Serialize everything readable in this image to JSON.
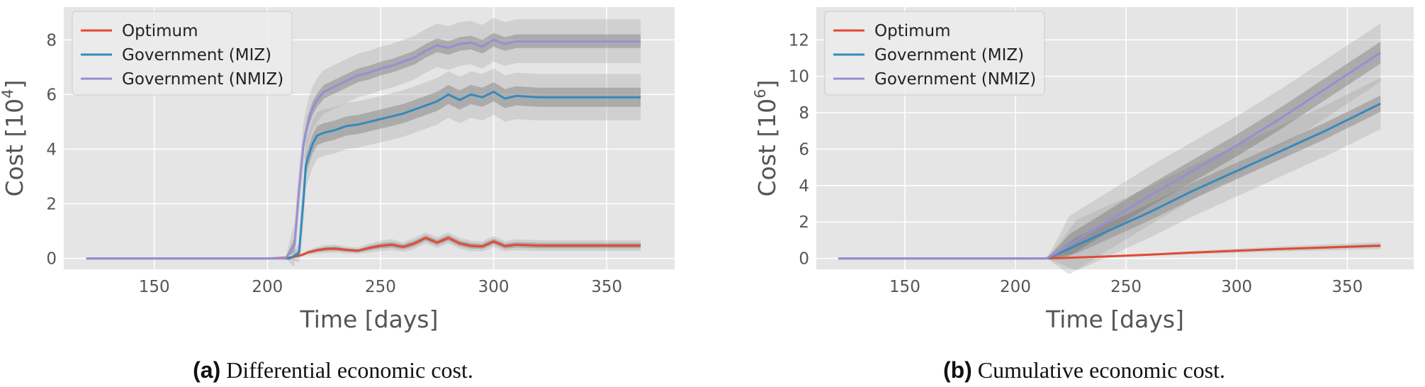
{
  "figure": {
    "captions": [
      {
        "tag": "(a)",
        "text": "Differential economic cost."
      },
      {
        "tag": "(b)",
        "text": "Cumulative economic cost."
      }
    ]
  },
  "chart_data": [
    {
      "type": "line",
      "xlabel": "Time [days]",
      "ylabel": "Cost [10",
      "ylabel_exp": "4",
      "ylabel_close": "]",
      "xlim": [
        110,
        380
      ],
      "ylim": [
        -0.4,
        9.2
      ],
      "xticks": [
        150,
        200,
        250,
        300,
        350
      ],
      "yticks": [
        0,
        2,
        4,
        6,
        8
      ],
      "grid": true,
      "legend_position": "top-left",
      "series": [
        {
          "name": "Optimum",
          "color": "#e24a33",
          "x": [
            120,
            200,
            210,
            215,
            218,
            222,
            226,
            230,
            235,
            240,
            245,
            250,
            255,
            260,
            265,
            270,
            275,
            280,
            285,
            290,
            295,
            300,
            305,
            310,
            320,
            330,
            340,
            350,
            360,
            365
          ],
          "y": [
            0,
            0,
            0.03,
            0.12,
            0.22,
            0.3,
            0.35,
            0.36,
            0.31,
            0.28,
            0.38,
            0.46,
            0.5,
            0.42,
            0.55,
            0.75,
            0.58,
            0.75,
            0.55,
            0.46,
            0.44,
            0.62,
            0.45,
            0.5,
            0.47,
            0.47,
            0.47,
            0.47,
            0.47,
            0.47
          ],
          "band_inner": 0.1,
          "band_outer": 0.2
        },
        {
          "name": "Government (MIZ)",
          "color": "#348abd",
          "x": [
            120,
            200,
            210,
            214,
            216,
            217,
            218,
            220,
            222,
            225,
            230,
            235,
            240,
            245,
            250,
            255,
            260,
            265,
            270,
            275,
            280,
            285,
            290,
            295,
            300,
            305,
            310,
            320,
            330,
            340,
            350,
            360,
            365
          ],
          "y": [
            0,
            0,
            0,
            0.2,
            2.2,
            3.4,
            3.7,
            4.2,
            4.5,
            4.6,
            4.7,
            4.85,
            4.9,
            5.0,
            5.1,
            5.2,
            5.3,
            5.45,
            5.6,
            5.75,
            6.0,
            5.8,
            6.0,
            5.9,
            6.1,
            5.85,
            5.95,
            5.9,
            5.9,
            5.9,
            5.9,
            5.9,
            5.9
          ],
          "band_inner": 0.35,
          "band_outer": 0.85
        },
        {
          "name": "Government (NMIZ)",
          "color": "#988ed5",
          "x": [
            120,
            200,
            208,
            212,
            214,
            216,
            218,
            220,
            222,
            225,
            230,
            235,
            240,
            245,
            250,
            255,
            260,
            265,
            270,
            275,
            280,
            285,
            290,
            295,
            300,
            305,
            310,
            320,
            330,
            340,
            350,
            360,
            365
          ],
          "y": [
            0,
            0,
            0,
            0.5,
            2.5,
            4.2,
            5.0,
            5.5,
            5.8,
            6.1,
            6.3,
            6.5,
            6.7,
            6.8,
            6.95,
            7.05,
            7.2,
            7.35,
            7.6,
            7.8,
            7.7,
            7.85,
            7.9,
            7.75,
            8.0,
            7.85,
            7.95,
            7.95,
            7.95,
            7.95,
            7.95,
            7.95,
            7.95
          ],
          "band_inner": 0.25,
          "band_outer": 0.8
        }
      ]
    },
    {
      "type": "line",
      "xlabel": "Time [days]",
      "ylabel": "Cost [10",
      "ylabel_exp": "6",
      "ylabel_close": "]",
      "xlim": [
        110,
        380
      ],
      "ylim": [
        -0.6,
        13.8
      ],
      "xticks": [
        150,
        200,
        250,
        300,
        350
      ],
      "yticks": [
        0,
        2,
        4,
        6,
        8,
        10,
        12
      ],
      "grid": true,
      "legend_position": "top-left",
      "series": [
        {
          "name": "Optimum",
          "color": "#e24a33",
          "x": [
            120,
            210,
            220,
            240,
            260,
            280,
            300,
            320,
            340,
            365
          ],
          "y": [
            0,
            0,
            0.02,
            0.1,
            0.2,
            0.32,
            0.42,
            0.52,
            0.6,
            0.7
          ],
          "band_inner": 0.08,
          "band_outer": 0.2
        },
        {
          "name": "Government (MIZ)",
          "color": "#348abd",
          "x": [
            120,
            214,
            220,
            240,
            260,
            280,
            300,
            320,
            340,
            365
          ],
          "y": [
            0,
            0,
            0.3,
            1.4,
            2.5,
            3.7,
            4.8,
            5.9,
            7.0,
            8.5
          ],
          "band_inner": 0.45,
          "band_outer": 1.4
        },
        {
          "name": "Government (NMIZ)",
          "color": "#988ed5",
          "x": [
            120,
            214,
            220,
            240,
            260,
            280,
            300,
            320,
            340,
            365
          ],
          "y": [
            0,
            0,
            0.4,
            1.9,
            3.4,
            4.8,
            6.2,
            7.7,
            9.3,
            11.3
          ],
          "band_inner": 0.6,
          "band_outer": 1.6
        }
      ]
    }
  ]
}
